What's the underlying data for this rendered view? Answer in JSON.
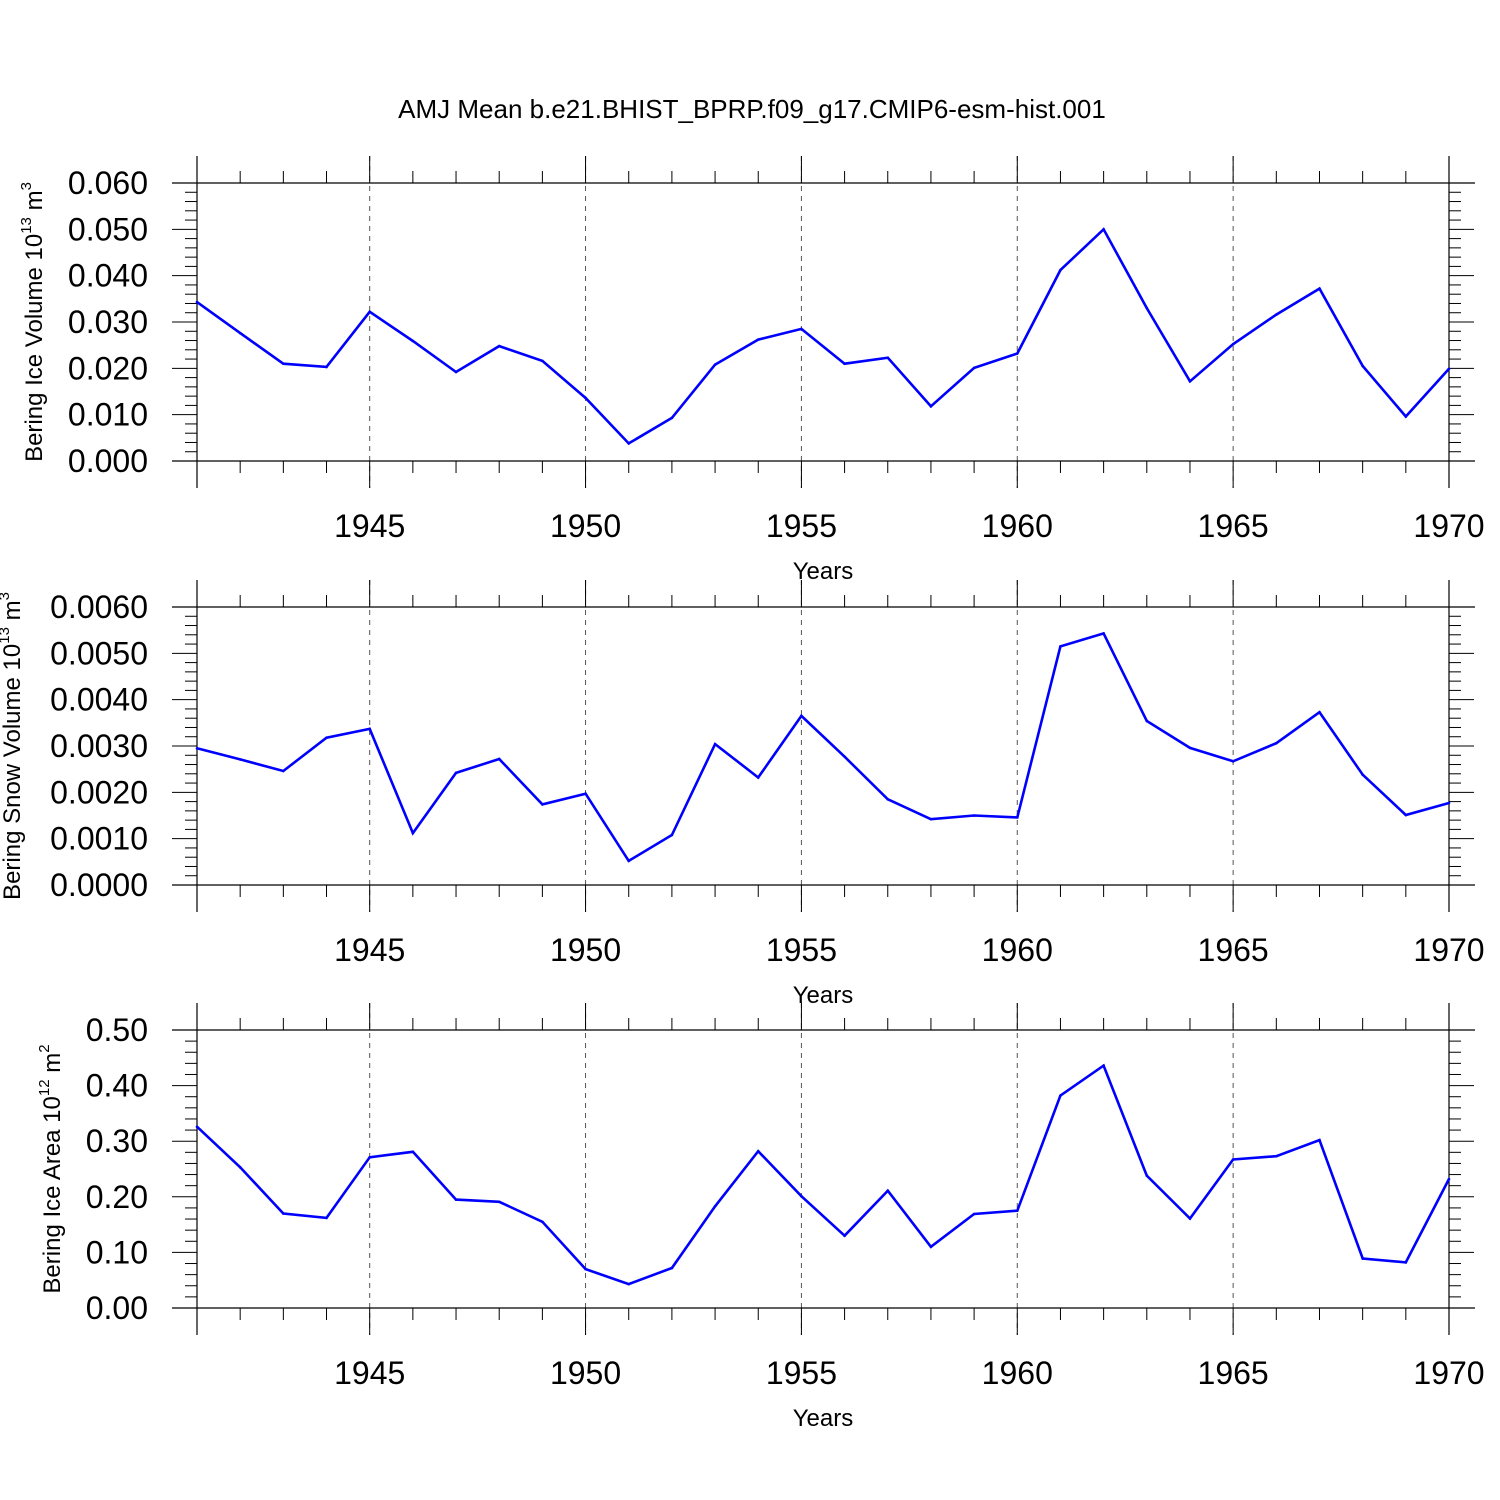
{
  "colors": {
    "series": "#0000ff",
    "frame": "#000000",
    "grid": "#555555",
    "background": "#ffffff"
  },
  "chart_data": [
    {
      "type": "line",
      "title": "AMJ Mean b.e21.BHIST_BPRP.f09_g17.CMIP6-esm-hist.001",
      "ylabel": "Bering Ice Volume 10",
      "ylabel_exp": "13",
      "ylabel_unit": " m",
      "ylabel_unit_exp": "3",
      "xlabel": "Years",
      "xlim": [
        1941,
        1970
      ],
      "ylim": [
        0,
        0.06
      ],
      "xticks": [
        "1945",
        "1950",
        "1955",
        "1960",
        "1965",
        "1970"
      ],
      "yticks": [
        "0.000",
        "0.010",
        "0.020",
        "0.030",
        "0.040",
        "0.050",
        "0.060"
      ],
      "grid": "dashed vertical lines at major x ticks",
      "x": [
        1941,
        1942,
        1943,
        1944,
        1945,
        1946,
        1947,
        1948,
        1949,
        1950,
        1951,
        1952,
        1953,
        1954,
        1955,
        1956,
        1957,
        1958,
        1959,
        1960,
        1961,
        1962,
        1963,
        1964,
        1965,
        1966,
        1967,
        1968,
        1969,
        1970
      ],
      "series": [
        {
          "values": [
            0.0343,
            0.0276,
            0.021,
            0.0203,
            0.0322,
            0.0259,
            0.0192,
            0.0248,
            0.0216,
            0.0136,
            0.0038,
            0.0093,
            0.0208,
            0.0262,
            0.0285,
            0.021,
            0.0223,
            0.0118,
            0.0201,
            0.0232,
            0.0412,
            0.05,
            0.033,
            0.0172,
            0.0252,
            0.0316,
            0.0372,
            0.0205,
            0.0096,
            0.0199
          ]
        }
      ]
    },
    {
      "type": "line",
      "ylabel": "Bering Snow Volume 10",
      "ylabel_exp": "13",
      "ylabel_unit": " m",
      "ylabel_unit_exp": "3",
      "xlabel": "Years",
      "xlim": [
        1941,
        1970
      ],
      "ylim": [
        0,
        0.006
      ],
      "xticks": [
        "1945",
        "1950",
        "1955",
        "1960",
        "1965",
        "1970"
      ],
      "yticks": [
        "0.0000",
        "0.0010",
        "0.0020",
        "0.0030",
        "0.0040",
        "0.0050",
        "0.0060"
      ],
      "grid": "dashed vertical lines at major x ticks",
      "x": [
        1941,
        1942,
        1943,
        1944,
        1945,
        1946,
        1947,
        1948,
        1949,
        1950,
        1951,
        1952,
        1953,
        1954,
        1955,
        1956,
        1957,
        1958,
        1959,
        1960,
        1961,
        1962,
        1963,
        1964,
        1965,
        1966,
        1967,
        1968,
        1969,
        1970
      ],
      "series": [
        {
          "values": [
            0.00295,
            0.00271,
            0.00246,
            0.00318,
            0.00337,
            0.00112,
            0.00242,
            0.00272,
            0.00174,
            0.00197,
            0.00052,
            0.00108,
            0.00304,
            0.00232,
            0.00365,
            0.00277,
            0.00185,
            0.00142,
            0.0015,
            0.00146,
            0.00515,
            0.00543,
            0.00354,
            0.00296,
            0.00267,
            0.00306,
            0.00373,
            0.00238,
            0.00151,
            0.00177
          ]
        }
      ]
    },
    {
      "type": "line",
      "ylabel": "Bering Ice Area 10",
      "ylabel_exp": "12",
      "ylabel_unit": " m",
      "ylabel_unit_exp": "2",
      "xlabel": "Years",
      "xlim": [
        1941,
        1970
      ],
      "ylim": [
        0,
        0.5
      ],
      "xticks": [
        "1945",
        "1950",
        "1955",
        "1960",
        "1965",
        "1970"
      ],
      "yticks": [
        "0.00",
        "0.10",
        "0.20",
        "0.30",
        "0.40",
        "0.50"
      ],
      "grid": "dashed vertical lines at major x ticks",
      "x": [
        1941,
        1942,
        1943,
        1944,
        1945,
        1946,
        1947,
        1948,
        1949,
        1950,
        1951,
        1952,
        1953,
        1954,
        1955,
        1956,
        1957,
        1958,
        1959,
        1960,
        1961,
        1962,
        1963,
        1964,
        1965,
        1966,
        1967,
        1968,
        1969,
        1970
      ],
      "series": [
        {
          "values": [
            0.326,
            0.253,
            0.17,
            0.162,
            0.271,
            0.281,
            0.195,
            0.191,
            0.155,
            0.07,
            0.043,
            0.072,
            0.183,
            0.282,
            0.201,
            0.13,
            0.211,
            0.11,
            0.169,
            0.175,
            0.382,
            0.436,
            0.238,
            0.161,
            0.267,
            0.273,
            0.302,
            0.089,
            0.082,
            0.232
          ]
        }
      ]
    }
  ]
}
